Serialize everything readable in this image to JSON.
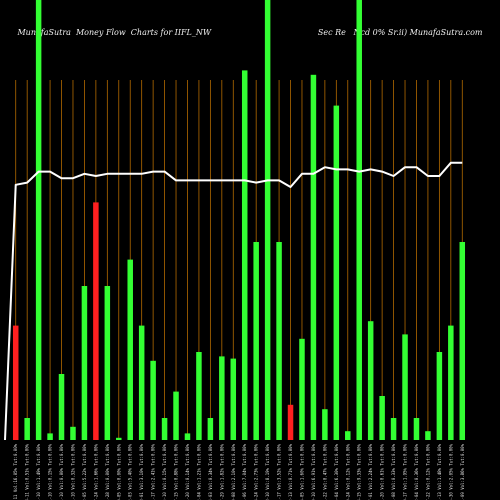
{
  "title": "MunafaSutra  Money Flow  Charts for IIFL_NW                                          Sec Re   Ncd 0% Sr.ii) MunafaSutra.com",
  "colors": {
    "up": "#33ff33",
    "down": "#ff2020",
    "grid": "#b36a00",
    "line": "#ffffff",
    "background": "#000000"
  },
  "chart_data": {
    "type": "bar",
    "ylim": [
      0,
      100
    ],
    "values": [
      26,
      5,
      100,
      1.5,
      15,
      3,
      35,
      54,
      35,
      0.5,
      41,
      26,
      18,
      5,
      11,
      1.5,
      20,
      5,
      19,
      18.5,
      84,
      45,
      100,
      45,
      8,
      23,
      83,
      7,
      76,
      2,
      100,
      27,
      10,
      5,
      24,
      5,
      2,
      20,
      26,
      45
    ],
    "directions": [
      "down",
      "up",
      "up",
      "up",
      "up",
      "up",
      "up",
      "down",
      "up",
      "up",
      "up",
      "up",
      "up",
      "up",
      "up",
      "up",
      "up",
      "up",
      "up",
      "up",
      "up",
      "up",
      "up",
      "up",
      "down",
      "up",
      "up",
      "up",
      "up",
      "up",
      "up",
      "up",
      "up",
      "up",
      "up",
      "up",
      "up",
      "up",
      "up",
      "up"
    ],
    "line": [
      58,
      58.5,
      61,
      61,
      59.5,
      59.5,
      60.5,
      60,
      60.5,
      60.5,
      60.5,
      60.5,
      61,
      61,
      59,
      59,
      59,
      59,
      59,
      59,
      59,
      58.5,
      59,
      59,
      57.5,
      60.5,
      60.5,
      62,
      61.5,
      61.5,
      61,
      61.5,
      61,
      60,
      62,
      62,
      60,
      60,
      63,
      63
    ],
    "x_labels": [
      "2009-08-11 Vol:16.05% Tut:0.00%",
      "2009-08-11 Vol:0.51% Tut:0.00%",
      "2010-11-10 Vol:1.49% Tut:0.00%",
      "2010-11-10 Vol:0.15% Tut:0.00%",
      "2010-11-10 Vol:0.00% Tut:0.00%",
      "2010-11-10 Vol:0.32% Tut:0.00%",
      "2011-02-05 Vol:5.22% Tut:0.00%",
      "2011-07-24 Vol:1.66% Tut:0.00%",
      "2012-01-28 Vol:0.00% Tut:0.00%",
      "2012-09-05 Vol:0.00% Tut:0.00%",
      "2013-02-03 Vol:5.40% Tut:0.00%",
      "2013-08-01 Vol:3.10% Tut:0.00%",
      "2014-01-17 Vol:2.41% Tut:0.00%",
      "2014-03-10 Vol:0.15% Tut:0.00%",
      "2014-07-15 Vol:0.88% Tut:0.00%",
      "2014-11-20 Vol:0.14% Tut:0.00%",
      "2015-02-04 Vol:1.21% Tut:0.00%",
      "2015-04-03 Vol:0.34% Tut:0.00%",
      "2015-07-29 Vol:1.82% Tut:0.00%",
      "2015-09-08 Vol:2.10% Tut:0.00%",
      "2016-01-06 Vol:7.04% Tut:0.00%",
      "2016-03-24 Vol:2.73% Tut:0.00%",
      "2016-08-10 Vol:8.19% Tut:0.00%",
      "2016-11-17 Vol:3.52% Tut:0.00%",
      "2017-02-13 Vol:0.71% Tut:0.00%",
      "2017-06-05 Vol:1.60% Tut:0.00%",
      "2017-10-10 Vol:6.91% Tut:0.00%",
      "2018-01-22 Vol:0.47% Tut:0.00%",
      "2018-05-04 Vol:6.30% Tut:0.00%",
      "2018-10-24 Vol:0.12% Tut:0.00%",
      "2019-03-15 Vol:9.33% Tut:0.00%",
      "2019-07-01 Vol:2.24% Tut:0.00%",
      "2019-11-20 Vol:0.61% Tut:0.00%",
      "2020-04-08 Vol:0.33% Tut:0.00%",
      "2020-09-17 Vol:1.95% Tut:0.00%",
      "2021-02-04 Vol:0.36% Tut:0.00%",
      "2021-07-22 Vol:0.12% Tut:0.00%",
      "2022-01-13 Vol:1.48% Tut:0.00%",
      "2022-06-30 Vol:2.05% Tut:0.00%",
      "2023-01-09 Vol:3.86% Tut:0.00%"
    ]
  }
}
